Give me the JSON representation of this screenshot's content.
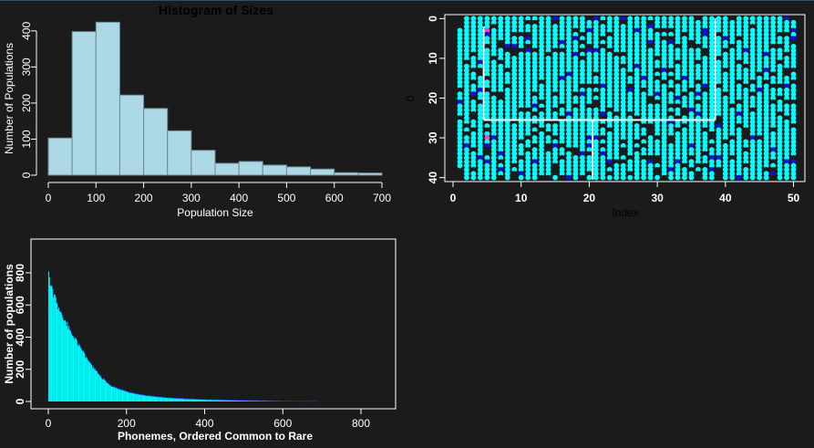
{
  "chart_data": [
    {
      "type": "bar",
      "title": "Histogram of Sizes",
      "xlabel": "Population Size",
      "ylabel": "Number of Populations",
      "xlim": [
        0,
        700
      ],
      "ylim": [
        0,
        430
      ],
      "xticks": [
        "0",
        "100",
        "200",
        "300",
        "400",
        "500",
        "600",
        "700"
      ],
      "yticks": [
        "0",
        "100",
        "200",
        "300",
        "400"
      ],
      "bin_edges": [
        0,
        50,
        100,
        150,
        200,
        250,
        300,
        350,
        400,
        450,
        500,
        550,
        600,
        650,
        700
      ],
      "values": [
        103,
        398,
        424,
        222,
        185,
        123,
        69,
        33,
        38,
        28,
        23,
        17,
        7,
        6
      ],
      "fill": "#add8e6",
      "edge": "#6b8a96"
    },
    {
      "type": "scatter",
      "title": "",
      "xlabel": "Index",
      "ylabel": "0",
      "xlim": [
        0,
        51
      ],
      "ylim": [
        41,
        -1
      ],
      "xticks": [
        "0",
        "10",
        "20",
        "30",
        "40",
        "50"
      ],
      "yticks": [
        "0",
        "10",
        "20",
        "30",
        "40"
      ],
      "grid_cols": 50,
      "grid_rows": 41,
      "colors": {
        "present": "#00ffff",
        "absent": "#1b1b1b",
        "variant": "#1010dd",
        "highlight": "#ff3bd1"
      },
      "highlight_points": [
        [
          5,
          30
        ]
      ],
      "white_segments": [
        [
          [
            4.5,
            25.5
          ],
          [
            38.5,
            25.5
          ]
        ],
        [
          [
            20.5,
            25.5
          ],
          [
            20.5,
            40.5
          ]
        ],
        [
          [
            4.5,
            25.5
          ],
          [
            4.5,
            2
          ]
        ],
        [
          [
            38.5,
            25.5
          ],
          [
            38.5,
            0
          ]
        ]
      ]
    },
    {
      "type": "bar",
      "title": "",
      "xlabel": "Phonemes, Ordered Common to Rare",
      "ylabel": "Number of populations",
      "xlim": [
        -20,
        890
      ],
      "ylim": [
        -20,
        950
      ],
      "xticks": [
        "0",
        "200",
        "400",
        "600",
        "800"
      ],
      "yticks": [
        "0",
        "200",
        "400",
        "600",
        "800"
      ],
      "n_bars": 690,
      "curve_x": [
        0,
        5,
        10,
        20,
        30,
        40,
        50,
        60,
        70,
        80,
        90,
        100,
        110,
        120,
        130,
        140,
        150,
        160,
        180,
        200,
        220,
        240,
        260,
        280,
        300,
        350,
        400,
        450,
        500,
        550,
        600,
        650,
        690
      ],
      "curve_y": [
        790,
        730,
        680,
        620,
        560,
        510,
        470,
        425,
        385,
        340,
        300,
        260,
        225,
        195,
        165,
        140,
        118,
        100,
        78,
        62,
        50,
        42,
        35,
        30,
        25,
        18,
        13,
        10,
        7,
        5,
        3,
        2,
        1
      ],
      "fill": "#00ffff",
      "edge": "#1a1ad0"
    }
  ]
}
